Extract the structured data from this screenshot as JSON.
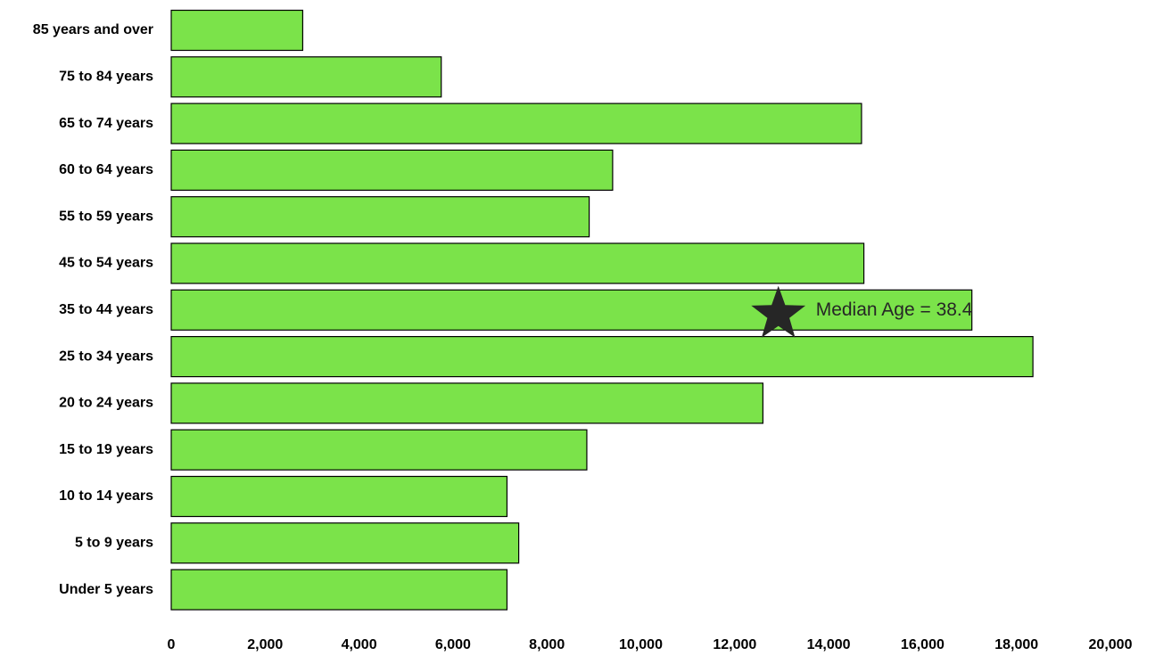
{
  "chart_data": {
    "type": "bar",
    "orientation": "horizontal",
    "categories": [
      "85 years and over",
      "75 to 84 years",
      "65 to 74 years",
      "60 to 64 years",
      "55 to 59 years",
      "45 to 54 years",
      "35 to 44 years",
      "25 to 34 years",
      "20 to 24 years",
      "15 to 19 years",
      "10 to 14 years",
      "5 to 9 years",
      "Under 5 years"
    ],
    "values": [
      2800,
      5750,
      14700,
      9400,
      8900,
      14750,
      17050,
      18350,
      12600,
      8850,
      7150,
      7400,
      7150
    ],
    "title": "",
    "xlabel": "",
    "ylabel": "",
    "xlim": [
      0,
      20000
    ],
    "xticks": [
      0,
      2000,
      4000,
      6000,
      8000,
      10000,
      12000,
      14000,
      16000,
      18000,
      20000
    ],
    "xtick_labels": [
      "0",
      "2,000",
      "4,000",
      "6,000",
      "8,000",
      "10,000",
      "12,000",
      "14,000",
      "16,000",
      "18,000",
      "20,000"
    ],
    "grid": false,
    "legend": "none",
    "colors": {
      "bar_fill": "#7be34a",
      "bar_stroke": "#000000",
      "star": "#262626",
      "annotation_text": "#262626"
    },
    "annotation": {
      "label": "Median Age = ",
      "value": "38.4",
      "marker": "star-icon",
      "category": "35 to 44 years",
      "x": 13100
    }
  }
}
